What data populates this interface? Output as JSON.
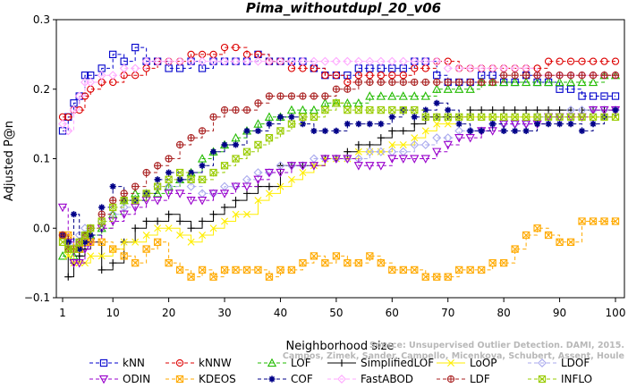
{
  "chart_data": {
    "type": "line",
    "title": "Pima_withoutdupl_20_v06",
    "xlabel": "Neighborhood size",
    "ylabel": "Adjusted P@n",
    "xlim": [
      1,
      100
    ],
    "ylim": [
      -0.1,
      0.3
    ],
    "x_ticks": [
      1,
      10,
      20,
      30,
      40,
      50,
      60,
      70,
      80,
      90,
      100
    ],
    "y_ticks": [
      -0.1,
      0.0,
      0.1,
      0.2,
      0.3
    ],
    "y_tick_labels": [
      "−0.1",
      "0.0",
      "0.1",
      "0.2",
      "0.3"
    ],
    "grid": false,
    "legend_position": "bottom",
    "x_sample": [
      1,
      2,
      3,
      4,
      5,
      6,
      8,
      10,
      12,
      14,
      16,
      18,
      20,
      22,
      24,
      26,
      28,
      30,
      32,
      34,
      36,
      38,
      40,
      42,
      44,
      46,
      48,
      50,
      52,
      54,
      56,
      58,
      60,
      62,
      64,
      66,
      68,
      70,
      72,
      74,
      76,
      78,
      80,
      82,
      84,
      86,
      88,
      90,
      92,
      94,
      96,
      98,
      100
    ],
    "series": [
      {
        "name": "kNN",
        "color": "#0000cc",
        "marker": "square",
        "dash": "4,3",
        "values": [
          0.14,
          0.16,
          0.18,
          0.19,
          0.22,
          0.22,
          0.23,
          0.25,
          0.24,
          0.26,
          0.24,
          0.24,
          0.23,
          0.23,
          0.24,
          0.23,
          0.24,
          0.24,
          0.24,
          0.24,
          0.25,
          0.24,
          0.24,
          0.24,
          0.24,
          0.23,
          0.22,
          0.22,
          0.22,
          0.23,
          0.23,
          0.23,
          0.23,
          0.23,
          0.24,
          0.24,
          0.22,
          0.21,
          0.21,
          0.21,
          0.22,
          0.22,
          0.21,
          0.21,
          0.22,
          0.21,
          0.21,
          0.2,
          0.2,
          0.19,
          0.19,
          0.19,
          0.19
        ]
      },
      {
        "name": "kNNW",
        "color": "#dd0000",
        "marker": "circle",
        "dash": "4,3",
        "values": [
          0.16,
          0.16,
          0.17,
          0.17,
          0.19,
          0.2,
          0.21,
          0.21,
          0.22,
          0.22,
          0.23,
          0.24,
          0.24,
          0.24,
          0.25,
          0.25,
          0.25,
          0.26,
          0.26,
          0.25,
          0.25,
          0.24,
          0.24,
          0.23,
          0.23,
          0.23,
          0.22,
          0.22,
          0.21,
          0.22,
          0.22,
          0.22,
          0.22,
          0.22,
          0.23,
          0.23,
          0.24,
          0.24,
          0.23,
          0.23,
          0.23,
          0.23,
          0.23,
          0.23,
          0.23,
          0.23,
          0.24,
          0.24,
          0.24,
          0.24,
          0.24,
          0.24,
          0.24
        ]
      },
      {
        "name": "LOF",
        "color": "#22bb00",
        "marker": "triangle-up",
        "dash": "4,3",
        "values": [
          -0.04,
          -0.03,
          -0.04,
          -0.03,
          -0.01,
          -0.01,
          0.0,
          0.02,
          0.04,
          0.05,
          0.05,
          0.05,
          0.06,
          0.07,
          0.08,
          0.1,
          0.11,
          0.12,
          0.13,
          0.14,
          0.15,
          0.16,
          0.16,
          0.17,
          0.17,
          0.17,
          0.18,
          0.18,
          0.18,
          0.18,
          0.19,
          0.19,
          0.19,
          0.19,
          0.19,
          0.19,
          0.2,
          0.2,
          0.2,
          0.2,
          0.21,
          0.21,
          0.21,
          0.21,
          0.21,
          0.21,
          0.21,
          0.21,
          0.21,
          0.21,
          0.21,
          0.22,
          0.22
        ]
      },
      {
        "name": "SimplifiedLOF",
        "color": "#000000",
        "marker": "plus",
        "dash": "",
        "values": [
          -0.01,
          -0.07,
          -0.05,
          -0.04,
          -0.03,
          -0.02,
          -0.06,
          -0.05,
          -0.02,
          0.0,
          0.01,
          0.01,
          0.02,
          0.01,
          0.0,
          0.01,
          0.02,
          0.03,
          0.04,
          0.05,
          0.06,
          0.06,
          0.09,
          0.09,
          0.09,
          0.09,
          0.1,
          0.1,
          0.11,
          0.12,
          0.12,
          0.13,
          0.14,
          0.14,
          0.15,
          0.16,
          0.16,
          0.16,
          0.16,
          0.17,
          0.17,
          0.17,
          0.17,
          0.17,
          0.17,
          0.17,
          0.17,
          0.17,
          0.17,
          0.17,
          0.17,
          0.17,
          0.17
        ]
      },
      {
        "name": "LoOP",
        "color": "#ffee00",
        "marker": "x",
        "dash": "",
        "values": [
          -0.02,
          -0.04,
          -0.05,
          -0.05,
          -0.05,
          -0.04,
          -0.04,
          -0.03,
          -0.02,
          -0.02,
          -0.01,
          0.0,
          0.0,
          -0.01,
          -0.02,
          -0.01,
          0.0,
          0.01,
          0.02,
          0.02,
          0.04,
          0.05,
          0.06,
          0.07,
          0.08,
          0.09,
          0.1,
          0.1,
          0.1,
          0.11,
          0.11,
          0.11,
          0.12,
          0.12,
          0.13,
          0.14,
          0.15,
          0.15,
          0.16,
          0.16,
          0.16,
          0.16,
          0.16,
          0.16,
          0.16,
          0.16,
          0.16,
          0.16,
          0.16,
          0.16,
          0.16,
          0.16,
          0.16
        ]
      },
      {
        "name": "LDOF",
        "color": "#aaaaee",
        "marker": "diamond",
        "dash": "4,3",
        "values": [
          -0.01,
          -0.02,
          -0.02,
          -0.01,
          0.0,
          0.0,
          0.01,
          0.02,
          0.03,
          0.04,
          0.05,
          0.06,
          0.06,
          0.07,
          0.06,
          0.05,
          0.05,
          0.06,
          0.06,
          0.07,
          0.08,
          0.08,
          0.09,
          0.09,
          0.09,
          0.1,
          0.1,
          0.1,
          0.1,
          0.1,
          0.11,
          0.11,
          0.11,
          0.11,
          0.12,
          0.12,
          0.13,
          0.13,
          0.14,
          0.14,
          0.14,
          0.15,
          0.15,
          0.15,
          0.15,
          0.16,
          0.16,
          0.16,
          0.17,
          0.17,
          0.17,
          0.17,
          0.17
        ]
      },
      {
        "name": "ODIN",
        "color": "#9900cc",
        "marker": "triangle-down",
        "dash": "4,3",
        "values": [
          0.03,
          -0.02,
          -0.05,
          -0.05,
          -0.03,
          -0.02,
          0.0,
          0.01,
          0.02,
          0.03,
          0.04,
          0.04,
          0.05,
          0.05,
          0.04,
          0.04,
          0.05,
          0.05,
          0.06,
          0.06,
          0.07,
          0.08,
          0.08,
          0.09,
          0.09,
          0.09,
          0.1,
          0.1,
          0.1,
          0.09,
          0.09,
          0.09,
          0.1,
          0.1,
          0.1,
          0.1,
          0.11,
          0.12,
          0.13,
          0.13,
          0.14,
          0.14,
          0.15,
          0.15,
          0.15,
          0.15,
          0.16,
          0.16,
          0.16,
          0.16,
          0.17,
          0.17,
          0.17
        ]
      },
      {
        "name": "KDEOS",
        "color": "#ffaa00",
        "marker": "square-x",
        "dash": "4,3",
        "values": [
          -0.01,
          -0.01,
          -0.03,
          -0.03,
          -0.02,
          -0.02,
          -0.02,
          -0.03,
          -0.04,
          -0.05,
          -0.03,
          -0.02,
          -0.05,
          -0.06,
          -0.07,
          -0.06,
          -0.07,
          -0.06,
          -0.06,
          -0.06,
          -0.06,
          -0.07,
          -0.06,
          -0.06,
          -0.05,
          -0.04,
          -0.05,
          -0.04,
          -0.05,
          -0.05,
          -0.04,
          -0.05,
          -0.06,
          -0.06,
          -0.06,
          -0.07,
          -0.07,
          -0.07,
          -0.06,
          -0.06,
          -0.06,
          -0.05,
          -0.05,
          -0.03,
          -0.01,
          0.0,
          -0.01,
          -0.02,
          -0.02,
          0.01,
          0.01,
          0.01,
          0.01
        ]
      },
      {
        "name": "COF",
        "color": "#000088",
        "marker": "asterisk",
        "dash": "4,3",
        "values": [
          -0.01,
          -0.02,
          0.02,
          -0.03,
          -0.02,
          -0.01,
          0.03,
          0.06,
          0.04,
          0.04,
          0.05,
          0.07,
          0.08,
          0.07,
          0.08,
          0.09,
          0.11,
          0.12,
          0.12,
          0.14,
          0.14,
          0.15,
          0.16,
          0.16,
          0.15,
          0.14,
          0.14,
          0.14,
          0.15,
          0.15,
          0.15,
          0.15,
          0.16,
          0.17,
          0.16,
          0.17,
          0.18,
          0.17,
          0.15,
          0.14,
          0.14,
          0.15,
          0.14,
          0.14,
          0.14,
          0.15,
          0.15,
          0.15,
          0.15,
          0.14,
          0.15,
          0.16,
          0.17
        ]
      },
      {
        "name": "FastABOD",
        "color": "#ffaaff",
        "marker": "diamond",
        "dash": "4,3",
        "values": [
          0.15,
          0.14,
          0.17,
          0.19,
          0.21,
          0.21,
          0.22,
          0.22,
          0.23,
          0.23,
          0.24,
          0.24,
          0.24,
          0.24,
          0.24,
          0.24,
          0.24,
          0.24,
          0.24,
          0.24,
          0.24,
          0.24,
          0.24,
          0.24,
          0.24,
          0.24,
          0.24,
          0.24,
          0.24,
          0.24,
          0.24,
          0.24,
          0.24,
          0.24,
          0.24,
          0.24,
          0.24,
          0.23,
          0.23,
          0.23,
          0.23,
          0.23,
          0.23,
          0.23,
          0.23,
          0.22,
          0.22,
          0.22,
          0.22,
          0.22,
          0.22,
          0.22,
          0.22
        ]
      },
      {
        "name": "LDF",
        "color": "#aa2222",
        "marker": "circle-plus",
        "dash": "4,3",
        "values": [
          -0.01,
          -0.03,
          -0.03,
          -0.02,
          -0.01,
          0.0,
          0.02,
          0.04,
          0.05,
          0.06,
          0.08,
          0.09,
          0.1,
          0.12,
          0.13,
          0.14,
          0.16,
          0.17,
          0.17,
          0.17,
          0.18,
          0.19,
          0.19,
          0.19,
          0.19,
          0.19,
          0.19,
          0.2,
          0.2,
          0.21,
          0.21,
          0.21,
          0.21,
          0.21,
          0.21,
          0.21,
          0.21,
          0.21,
          0.21,
          0.21,
          0.21,
          0.21,
          0.22,
          0.22,
          0.22,
          0.22,
          0.22,
          0.22,
          0.22,
          0.22,
          0.22,
          0.22,
          0.22
        ]
      },
      {
        "name": "INFLO",
        "color": "#99cc00",
        "marker": "square-x",
        "dash": "4,3",
        "values": [
          -0.02,
          -0.03,
          -0.03,
          -0.02,
          -0.01,
          0.0,
          0.01,
          0.03,
          0.04,
          0.04,
          0.05,
          0.06,
          0.07,
          0.08,
          0.07,
          0.07,
          0.08,
          0.09,
          0.1,
          0.11,
          0.12,
          0.13,
          0.14,
          0.15,
          0.16,
          0.16,
          0.17,
          0.18,
          0.17,
          0.17,
          0.17,
          0.17,
          0.17,
          0.17,
          0.17,
          0.16,
          0.16,
          0.16,
          0.16,
          0.16,
          0.16,
          0.16,
          0.16,
          0.16,
          0.16,
          0.16,
          0.16,
          0.16,
          0.16,
          0.16,
          0.16,
          0.16,
          0.16
        ]
      }
    ]
  },
  "legend_rows": [
    [
      "kNN",
      "kNNW",
      "LOF",
      "SimplifiedLOF",
      "LoOP",
      "LDOF"
    ],
    [
      "ODIN",
      "KDEOS",
      "COF",
      "FastABOD",
      "LDF",
      "INFLO"
    ]
  ],
  "watermark": {
    "line1": "Source: Unsupervised Outlier Detection. DAMI, 2015.",
    "line2": "Campos, Zimek, Sander, Campello, Micenkova, Schubert, Assent, Houle"
  }
}
